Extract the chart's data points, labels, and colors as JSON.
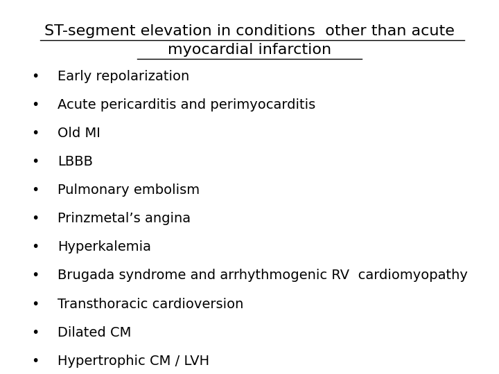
{
  "title_line1": "ST-segment elevation in conditions  other than acute",
  "title_line2": "myocardial infarction",
  "title_fontsize": 16,
  "title_color": "#000000",
  "bullet_items": [
    "Early repolarization",
    "Acute pericarditis and perimyocarditis",
    "Old MI",
    "LBBB",
    "Pulmonary embolism",
    "Prinzmetal’s angina",
    "Hyperkalemia",
    "Brugada syndrome and arrhythmogenic RV  cardiomyopathy",
    "Transthoracic cardioversion",
    "Dilated CM",
    "Hypertrophic CM / LVH"
  ],
  "bullet_fontsize": 14,
  "bullet_color": "#000000",
  "bullet_symbol": "•",
  "background_color": "#ffffff",
  "figsize": [
    7.2,
    5.4
  ],
  "dpi": 100
}
